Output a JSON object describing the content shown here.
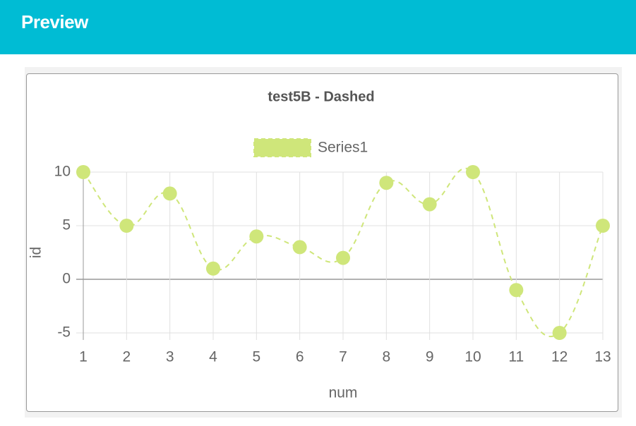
{
  "header": {
    "title": "Preview"
  },
  "chart_data": {
    "type": "line",
    "title": "test5B - Dashed",
    "x_label": "num",
    "y_label": "id",
    "x": [
      1,
      2,
      3,
      4,
      5,
      6,
      7,
      8,
      9,
      10,
      11,
      12,
      13
    ],
    "series": [
      {
        "name": "Series1",
        "color": "#cfe67a",
        "values": [
          10,
          5,
          8,
          1,
          4,
          3,
          2,
          9,
          7,
          10,
          -1,
          -5,
          5
        ]
      }
    ],
    "xlim": [
      1,
      13
    ],
    "xticks": [
      1,
      2,
      3,
      4,
      5,
      6,
      7,
      8,
      9,
      10,
      11,
      12,
      13
    ],
    "ylim": [
      -5,
      10
    ],
    "yticks": [
      10,
      5,
      0,
      -5
    ],
    "grid": true,
    "dashed": true,
    "legend": "top"
  }
}
